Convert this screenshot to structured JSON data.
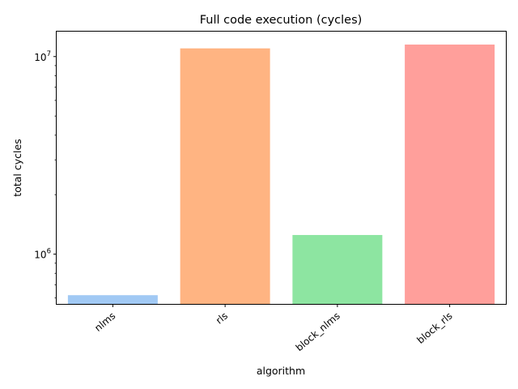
{
  "chart_data": {
    "type": "bar",
    "title": "Full code execution (cycles)",
    "xlabel": "algorithm",
    "ylabel": "total cycles",
    "y_scale": "log",
    "ylim": [
      560000,
      13500000
    ],
    "categories": [
      "nlms",
      "rls",
      "block_nlms",
      "block_rls"
    ],
    "values": [
      620000,
      11000000,
      1250000,
      11500000
    ],
    "colors": [
      "#a1c9f4",
      "#ffb482",
      "#8de5a1",
      "#ff9f9b"
    ],
    "major_ticks": [
      {
        "value": 1000000,
        "base": "10",
        "exponent": "6"
      },
      {
        "value": 10000000,
        "base": "10",
        "exponent": "7"
      }
    ],
    "grid": false,
    "legend": "none"
  }
}
